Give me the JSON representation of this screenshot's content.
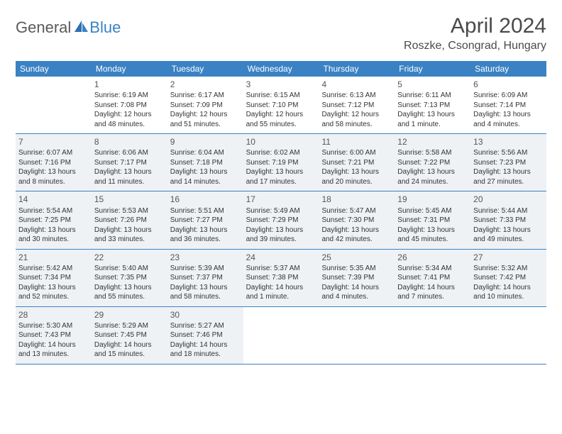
{
  "logo": {
    "general": "General",
    "blue": "Blue"
  },
  "title": "April 2024",
  "location": "Roszke, Csongrad, Hungary",
  "colors": {
    "header_bg": "#3a82c4",
    "header_text": "#ffffff",
    "border": "#3a82c4",
    "shaded_bg": "#eef2f5",
    "body_text": "#333333",
    "title_text": "#4a4a4a"
  },
  "weekdays": [
    "Sunday",
    "Monday",
    "Tuesday",
    "Wednesday",
    "Thursday",
    "Friday",
    "Saturday"
  ],
  "weeks": [
    [
      {
        "num": "",
        "sunrise": "",
        "sunset": "",
        "daylight1": "",
        "daylight2": "",
        "shaded": false
      },
      {
        "num": "1",
        "sunrise": "Sunrise: 6:19 AM",
        "sunset": "Sunset: 7:08 PM",
        "daylight1": "Daylight: 12 hours",
        "daylight2": "and 48 minutes.",
        "shaded": false
      },
      {
        "num": "2",
        "sunrise": "Sunrise: 6:17 AM",
        "sunset": "Sunset: 7:09 PM",
        "daylight1": "Daylight: 12 hours",
        "daylight2": "and 51 minutes.",
        "shaded": false
      },
      {
        "num": "3",
        "sunrise": "Sunrise: 6:15 AM",
        "sunset": "Sunset: 7:10 PM",
        "daylight1": "Daylight: 12 hours",
        "daylight2": "and 55 minutes.",
        "shaded": false
      },
      {
        "num": "4",
        "sunrise": "Sunrise: 6:13 AM",
        "sunset": "Sunset: 7:12 PM",
        "daylight1": "Daylight: 12 hours",
        "daylight2": "and 58 minutes.",
        "shaded": false
      },
      {
        "num": "5",
        "sunrise": "Sunrise: 6:11 AM",
        "sunset": "Sunset: 7:13 PM",
        "daylight1": "Daylight: 13 hours",
        "daylight2": "and 1 minute.",
        "shaded": false
      },
      {
        "num": "6",
        "sunrise": "Sunrise: 6:09 AM",
        "sunset": "Sunset: 7:14 PM",
        "daylight1": "Daylight: 13 hours",
        "daylight2": "and 4 minutes.",
        "shaded": false
      }
    ],
    [
      {
        "num": "7",
        "sunrise": "Sunrise: 6:07 AM",
        "sunset": "Sunset: 7:16 PM",
        "daylight1": "Daylight: 13 hours",
        "daylight2": "and 8 minutes.",
        "shaded": true
      },
      {
        "num": "8",
        "sunrise": "Sunrise: 6:06 AM",
        "sunset": "Sunset: 7:17 PM",
        "daylight1": "Daylight: 13 hours",
        "daylight2": "and 11 minutes.",
        "shaded": true
      },
      {
        "num": "9",
        "sunrise": "Sunrise: 6:04 AM",
        "sunset": "Sunset: 7:18 PM",
        "daylight1": "Daylight: 13 hours",
        "daylight2": "and 14 minutes.",
        "shaded": true
      },
      {
        "num": "10",
        "sunrise": "Sunrise: 6:02 AM",
        "sunset": "Sunset: 7:19 PM",
        "daylight1": "Daylight: 13 hours",
        "daylight2": "and 17 minutes.",
        "shaded": true
      },
      {
        "num": "11",
        "sunrise": "Sunrise: 6:00 AM",
        "sunset": "Sunset: 7:21 PM",
        "daylight1": "Daylight: 13 hours",
        "daylight2": "and 20 minutes.",
        "shaded": true
      },
      {
        "num": "12",
        "sunrise": "Sunrise: 5:58 AM",
        "sunset": "Sunset: 7:22 PM",
        "daylight1": "Daylight: 13 hours",
        "daylight2": "and 24 minutes.",
        "shaded": true
      },
      {
        "num": "13",
        "sunrise": "Sunrise: 5:56 AM",
        "sunset": "Sunset: 7:23 PM",
        "daylight1": "Daylight: 13 hours",
        "daylight2": "and 27 minutes.",
        "shaded": true
      }
    ],
    [
      {
        "num": "14",
        "sunrise": "Sunrise: 5:54 AM",
        "sunset": "Sunset: 7:25 PM",
        "daylight1": "Daylight: 13 hours",
        "daylight2": "and 30 minutes.",
        "shaded": true
      },
      {
        "num": "15",
        "sunrise": "Sunrise: 5:53 AM",
        "sunset": "Sunset: 7:26 PM",
        "daylight1": "Daylight: 13 hours",
        "daylight2": "and 33 minutes.",
        "shaded": true
      },
      {
        "num": "16",
        "sunrise": "Sunrise: 5:51 AM",
        "sunset": "Sunset: 7:27 PM",
        "daylight1": "Daylight: 13 hours",
        "daylight2": "and 36 minutes.",
        "shaded": true
      },
      {
        "num": "17",
        "sunrise": "Sunrise: 5:49 AM",
        "sunset": "Sunset: 7:29 PM",
        "daylight1": "Daylight: 13 hours",
        "daylight2": "and 39 minutes.",
        "shaded": true
      },
      {
        "num": "18",
        "sunrise": "Sunrise: 5:47 AM",
        "sunset": "Sunset: 7:30 PM",
        "daylight1": "Daylight: 13 hours",
        "daylight2": "and 42 minutes.",
        "shaded": true
      },
      {
        "num": "19",
        "sunrise": "Sunrise: 5:45 AM",
        "sunset": "Sunset: 7:31 PM",
        "daylight1": "Daylight: 13 hours",
        "daylight2": "and 45 minutes.",
        "shaded": true
      },
      {
        "num": "20",
        "sunrise": "Sunrise: 5:44 AM",
        "sunset": "Sunset: 7:33 PM",
        "daylight1": "Daylight: 13 hours",
        "daylight2": "and 49 minutes.",
        "shaded": true
      }
    ],
    [
      {
        "num": "21",
        "sunrise": "Sunrise: 5:42 AM",
        "sunset": "Sunset: 7:34 PM",
        "daylight1": "Daylight: 13 hours",
        "daylight2": "and 52 minutes.",
        "shaded": true
      },
      {
        "num": "22",
        "sunrise": "Sunrise: 5:40 AM",
        "sunset": "Sunset: 7:35 PM",
        "daylight1": "Daylight: 13 hours",
        "daylight2": "and 55 minutes.",
        "shaded": true
      },
      {
        "num": "23",
        "sunrise": "Sunrise: 5:39 AM",
        "sunset": "Sunset: 7:37 PM",
        "daylight1": "Daylight: 13 hours",
        "daylight2": "and 58 minutes.",
        "shaded": true
      },
      {
        "num": "24",
        "sunrise": "Sunrise: 5:37 AM",
        "sunset": "Sunset: 7:38 PM",
        "daylight1": "Daylight: 14 hours",
        "daylight2": "and 1 minute.",
        "shaded": true
      },
      {
        "num": "25",
        "sunrise": "Sunrise: 5:35 AM",
        "sunset": "Sunset: 7:39 PM",
        "daylight1": "Daylight: 14 hours",
        "daylight2": "and 4 minutes.",
        "shaded": true
      },
      {
        "num": "26",
        "sunrise": "Sunrise: 5:34 AM",
        "sunset": "Sunset: 7:41 PM",
        "daylight1": "Daylight: 14 hours",
        "daylight2": "and 7 minutes.",
        "shaded": true
      },
      {
        "num": "27",
        "sunrise": "Sunrise: 5:32 AM",
        "sunset": "Sunset: 7:42 PM",
        "daylight1": "Daylight: 14 hours",
        "daylight2": "and 10 minutes.",
        "shaded": true
      }
    ],
    [
      {
        "num": "28",
        "sunrise": "Sunrise: 5:30 AM",
        "sunset": "Sunset: 7:43 PM",
        "daylight1": "Daylight: 14 hours",
        "daylight2": "and 13 minutes.",
        "shaded": true
      },
      {
        "num": "29",
        "sunrise": "Sunrise: 5:29 AM",
        "sunset": "Sunset: 7:45 PM",
        "daylight1": "Daylight: 14 hours",
        "daylight2": "and 15 minutes.",
        "shaded": true
      },
      {
        "num": "30",
        "sunrise": "Sunrise: 5:27 AM",
        "sunset": "Sunset: 7:46 PM",
        "daylight1": "Daylight: 14 hours",
        "daylight2": "and 18 minutes.",
        "shaded": true
      },
      {
        "num": "",
        "sunrise": "",
        "sunset": "",
        "daylight1": "",
        "daylight2": "",
        "shaded": false
      },
      {
        "num": "",
        "sunrise": "",
        "sunset": "",
        "daylight1": "",
        "daylight2": "",
        "shaded": false
      },
      {
        "num": "",
        "sunrise": "",
        "sunset": "",
        "daylight1": "",
        "daylight2": "",
        "shaded": false
      },
      {
        "num": "",
        "sunrise": "",
        "sunset": "",
        "daylight1": "",
        "daylight2": "",
        "shaded": false
      }
    ]
  ]
}
